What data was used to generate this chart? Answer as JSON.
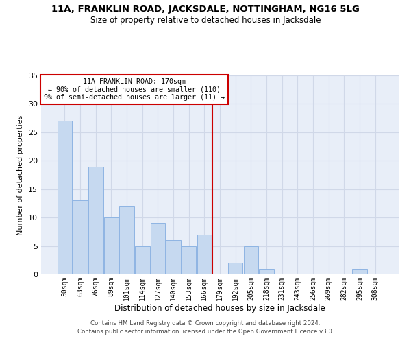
{
  "title": "11A, FRANKLIN ROAD, JACKSDALE, NOTTINGHAM, NG16 5LG",
  "subtitle": "Size of property relative to detached houses in Jacksdale",
  "xlabel": "Distribution of detached houses by size in Jacksdale",
  "ylabel": "Number of detached properties",
  "footer_line1": "Contains HM Land Registry data © Crown copyright and database right 2024.",
  "footer_line2": "Contains public sector information licensed under the Open Government Licence v3.0.",
  "bin_labels": [
    "50sqm",
    "63sqm",
    "76sqm",
    "89sqm",
    "101sqm",
    "114sqm",
    "127sqm",
    "140sqm",
    "153sqm",
    "166sqm",
    "179sqm",
    "192sqm",
    "205sqm",
    "218sqm",
    "231sqm",
    "243sqm",
    "256sqm",
    "269sqm",
    "282sqm",
    "295sqm",
    "308sqm"
  ],
  "bar_heights": [
    27,
    13,
    19,
    10,
    12,
    5,
    9,
    6,
    5,
    7,
    0,
    2,
    5,
    1,
    0,
    0,
    0,
    0,
    0,
    1,
    0
  ],
  "bar_color": "#c6d9f0",
  "bar_edge_color": "#8eb4e3",
  "grid_color": "#d0d8e8",
  "bg_color": "#e8eef8",
  "vline_x": 9.5,
  "annotation_text": "11A FRANKLIN ROAD: 170sqm\n← 90% of detached houses are smaller (110)\n9% of semi-detached houses are larger (11) →",
  "annotation_box_color": "#ffffff",
  "annotation_box_edge": "#cc0000",
  "vline_color": "#cc0000",
  "ylim": [
    0,
    35
  ],
  "yticks": [
    0,
    5,
    10,
    15,
    20,
    25,
    30,
    35
  ]
}
